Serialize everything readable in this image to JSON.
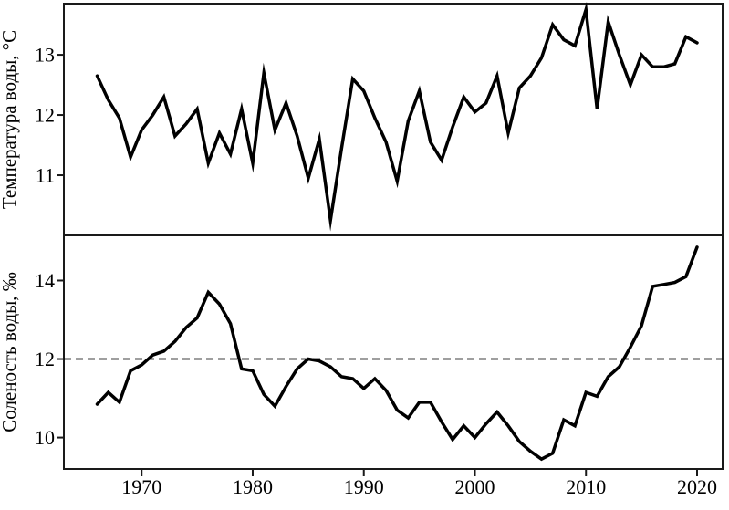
{
  "figure": {
    "background": "#ffffff",
    "line_color": "#000000",
    "axis_color": "#1a1a1a",
    "reference_line_style": "dashed"
  },
  "chart_data": [
    {
      "type": "line",
      "panel": "top",
      "title": "",
      "ylabel": "Температура воды, °C",
      "xlabel": "",
      "grid": false,
      "legend": "none",
      "x": [
        1966,
        1967,
        1968,
        1969,
        1970,
        1971,
        1972,
        1973,
        1974,
        1975,
        1976,
        1977,
        1978,
        1979,
        1980,
        1981,
        1982,
        1983,
        1984,
        1985,
        1986,
        1987,
        1988,
        1989,
        1990,
        1991,
        1992,
        1993,
        1994,
        1995,
        1996,
        1997,
        1998,
        1999,
        2000,
        2001,
        2002,
        2003,
        2004,
        2005,
        2006,
        2007,
        2008,
        2009,
        2010,
        2011,
        2012,
        2013,
        2014,
        2015,
        2016,
        2017,
        2018,
        2019,
        2020
      ],
      "values": [
        12.65,
        12.25,
        11.95,
        11.3,
        11.75,
        12.0,
        12.3,
        11.65,
        11.85,
        12.1,
        11.2,
        11.7,
        11.35,
        12.1,
        11.2,
        12.7,
        11.75,
        12.2,
        11.65,
        10.95,
        11.6,
        10.25,
        11.45,
        12.6,
        12.4,
        11.95,
        11.55,
        10.9,
        11.9,
        12.4,
        11.55,
        11.25,
        11.8,
        12.3,
        12.05,
        12.2,
        12.65,
        11.7,
        12.45,
        12.65,
        12.95,
        13.5,
        13.25,
        13.15,
        13.75,
        12.1,
        13.55,
        13.0,
        12.5,
        13.0,
        12.8,
        12.8,
        12.85,
        13.3,
        13.2
      ],
      "yticks": [
        11,
        12,
        13
      ],
      "ylim": [
        10.0,
        13.85
      ],
      "xlim": [
        1963,
        2022.3
      ]
    },
    {
      "type": "line",
      "panel": "bottom",
      "title": "",
      "ylabel": "Соленость воды, ‰",
      "xlabel": "",
      "grid": false,
      "legend": "none",
      "reference_line_y": 12,
      "x": [
        1966,
        1967,
        1968,
        1969,
        1970,
        1971,
        1972,
        1973,
        1974,
        1975,
        1976,
        1977,
        1978,
        1979,
        1980,
        1981,
        1982,
        1983,
        1984,
        1985,
        1986,
        1987,
        1988,
        1989,
        1990,
        1991,
        1992,
        1993,
        1994,
        1995,
        1996,
        1997,
        1998,
        1999,
        2000,
        2001,
        2002,
        2003,
        2004,
        2005,
        2006,
        2007,
        2008,
        2009,
        2010,
        2011,
        2012,
        2013,
        2014,
        2015,
        2016,
        2017,
        2018,
        2019,
        2020
      ],
      "values": [
        10.85,
        11.15,
        10.9,
        11.7,
        11.85,
        12.1,
        12.2,
        12.45,
        12.8,
        13.05,
        13.7,
        13.4,
        12.9,
        11.75,
        11.7,
        11.1,
        10.8,
        11.3,
        11.75,
        12.0,
        11.95,
        11.8,
        11.55,
        11.5,
        11.25,
        11.5,
        11.2,
        10.7,
        10.5,
        10.9,
        10.9,
        10.4,
        9.95,
        10.3,
        10.0,
        10.35,
        10.65,
        10.3,
        9.9,
        9.65,
        9.45,
        9.6,
        10.45,
        10.3,
        11.15,
        11.05,
        11.55,
        11.8,
        12.3,
        12.85,
        13.85,
        13.9,
        13.95,
        14.1,
        14.85
      ],
      "yticks": [
        10,
        12,
        14
      ],
      "ylim": [
        9.2,
        15.15
      ],
      "xlim": [
        1963,
        2022.3
      ]
    }
  ],
  "x_axis": {
    "ticks": [
      1970,
      1980,
      1990,
      2000,
      2010,
      2020
    ],
    "tick_labels": [
      "1970",
      "1980",
      "1990",
      "2000",
      "2010",
      "2020"
    ]
  }
}
